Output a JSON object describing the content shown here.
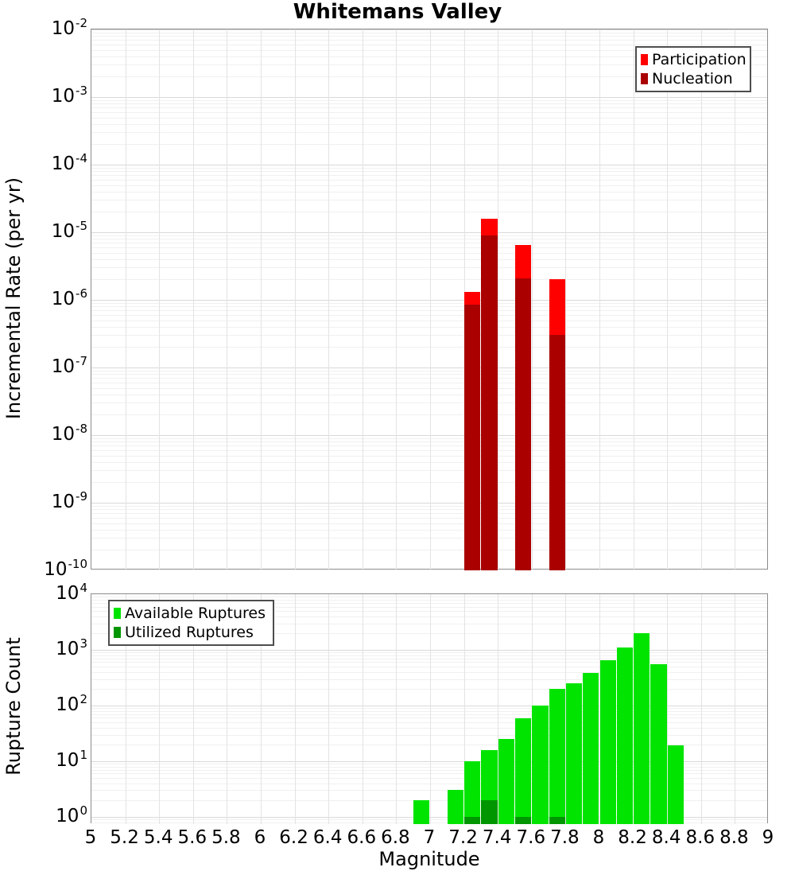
{
  "title": "Whitemans Valley",
  "x_axis": {
    "label": "Magnitude",
    "tick_labels": [
      "5",
      "5.2",
      "5.4",
      "5.6",
      "5.8",
      "6",
      "6.2",
      "6.4",
      "6.6",
      "6.8",
      "7",
      "7.2",
      "7.4",
      "7.6",
      "7.8",
      "8",
      "8.2",
      "8.4",
      "8.6",
      "8.8",
      "9"
    ]
  },
  "top_chart": {
    "ylabel": "Incremental Rate (per yr)",
    "y_tick_exponents": [
      -2,
      -3,
      -4,
      -5,
      -6,
      -7,
      -8,
      -9,
      -10
    ],
    "legend": [
      {
        "label": "Participation",
        "color": "#FF0000"
      },
      {
        "label": "Nucleation",
        "color": "#AA0000"
      }
    ]
  },
  "bottom_chart": {
    "ylabel": "Rupture Count",
    "y_tick_exponents": [
      4,
      3,
      2,
      1,
      0
    ],
    "legend": [
      {
        "label": "Available Ruptures",
        "color": "#00E400"
      },
      {
        "label": "Utilized Ruptures",
        "color": "#009600"
      }
    ]
  },
  "chart_data": [
    {
      "type": "bar",
      "panel": "top",
      "title": "Whitemans Valley",
      "xlabel": "Magnitude",
      "ylabel": "Incremental Rate (per yr)",
      "yscale": "log",
      "grid": true,
      "legend_position": "top-right",
      "xlim": [
        5,
        9
      ],
      "ylim": [
        1e-10,
        0.01
      ],
      "bar_width": 0.095,
      "x": [
        7.25,
        7.35,
        7.55,
        7.75
      ],
      "series": [
        {
          "name": "Participation",
          "color": "#FF0000",
          "values": [
            1.3e-06,
            1.6e-05,
            6.5e-06,
            2e-06
          ]
        },
        {
          "name": "Nucleation",
          "color": "#AA0000",
          "values": [
            8.5e-07,
            9e-06,
            2.1e-06,
            3e-07
          ]
        }
      ]
    },
    {
      "type": "bar",
      "panel": "bottom",
      "title": "",
      "xlabel": "Magnitude",
      "ylabel": "Rupture Count",
      "yscale": "log",
      "grid": true,
      "legend_position": "top-left",
      "xlim": [
        5,
        9
      ],
      "ylim": [
        0.74,
        10000
      ],
      "bar_width": 0.095,
      "x": [
        6.95,
        7.15,
        7.25,
        7.35,
        7.45,
        7.55,
        7.65,
        7.75,
        7.85,
        7.95,
        8.05,
        8.15,
        8.25,
        8.35,
        8.45
      ],
      "series": [
        {
          "name": "Available Ruptures",
          "color": "#00E400",
          "values": [
            2,
            3,
            10,
            16,
            25,
            58,
            100,
            200,
            250,
            390,
            660,
            1100,
            2000,
            550,
            19
          ]
        },
        {
          "name": "Utilized Ruptures",
          "color": "#009600",
          "values": [
            0,
            0,
            1,
            2,
            0,
            1,
            0,
            1,
            0,
            0,
            0,
            0,
            0,
            0,
            0
          ]
        }
      ]
    }
  ]
}
